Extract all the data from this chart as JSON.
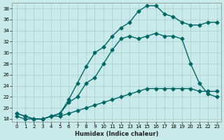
{
  "title": "",
  "xlabel": "Humidex (Indice chaleur)",
  "bg_color": "#c8eaea",
  "grid_color": "#aacccc",
  "line_color": "#006666",
  "ylim": [
    17.5,
    39
  ],
  "xlim": [
    -0.5,
    23.5
  ],
  "yticks": [
    18,
    20,
    22,
    24,
    26,
    28,
    30,
    32,
    34,
    36,
    38
  ],
  "xticks": [
    0,
    1,
    2,
    3,
    4,
    5,
    6,
    7,
    8,
    9,
    10,
    11,
    12,
    13,
    14,
    15,
    16,
    17,
    18,
    19,
    20,
    21,
    22,
    23
  ],
  "series1_x": [
    0,
    1,
    2,
    3,
    4,
    5,
    6,
    7,
    8,
    9,
    10,
    11,
    12,
    13,
    14,
    15,
    16,
    17,
    18,
    19,
    20,
    21,
    22,
    23
  ],
  "series1_y": [
    19.0,
    18.5,
    18.0,
    18.0,
    18.5,
    19.0,
    21.5,
    24.5,
    27.5,
    30.0,
    31.0,
    33.0,
    34.5,
    35.5,
    37.5,
    38.5,
    38.5,
    37.0,
    36.5,
    35.5,
    35.0,
    35.0,
    35.5,
    35.5
  ],
  "series2_x": [
    0,
    1,
    2,
    3,
    4,
    5,
    6,
    7,
    8,
    9,
    10,
    11,
    12,
    13,
    14,
    15,
    16,
    17,
    18,
    19,
    20,
    21,
    22,
    23
  ],
  "series2_y": [
    19.0,
    18.5,
    18.0,
    18.0,
    18.5,
    19.0,
    21.0,
    22.0,
    24.5,
    25.5,
    28.0,
    30.5,
    32.5,
    33.0,
    32.5,
    33.0,
    33.5,
    33.0,
    33.0,
    32.5,
    28.0,
    24.5,
    22.5,
    22.0
  ],
  "series3_x": [
    0,
    1,
    2,
    3,
    4,
    5,
    6,
    7,
    8,
    9,
    10,
    11,
    12,
    13,
    14,
    15,
    16,
    17,
    18,
    19,
    20,
    21,
    22,
    23
  ],
  "series3_y": [
    18.5,
    18.0,
    18.0,
    18.0,
    18.5,
    18.5,
    19.0,
    19.5,
    20.0,
    20.5,
    21.0,
    21.5,
    22.0,
    22.5,
    23.0,
    23.5,
    23.5,
    23.5,
    23.5,
    23.5,
    23.5,
    23.0,
    23.0,
    23.0
  ],
  "marker": "D",
  "markersize": 2.5,
  "linewidth": 1.0
}
